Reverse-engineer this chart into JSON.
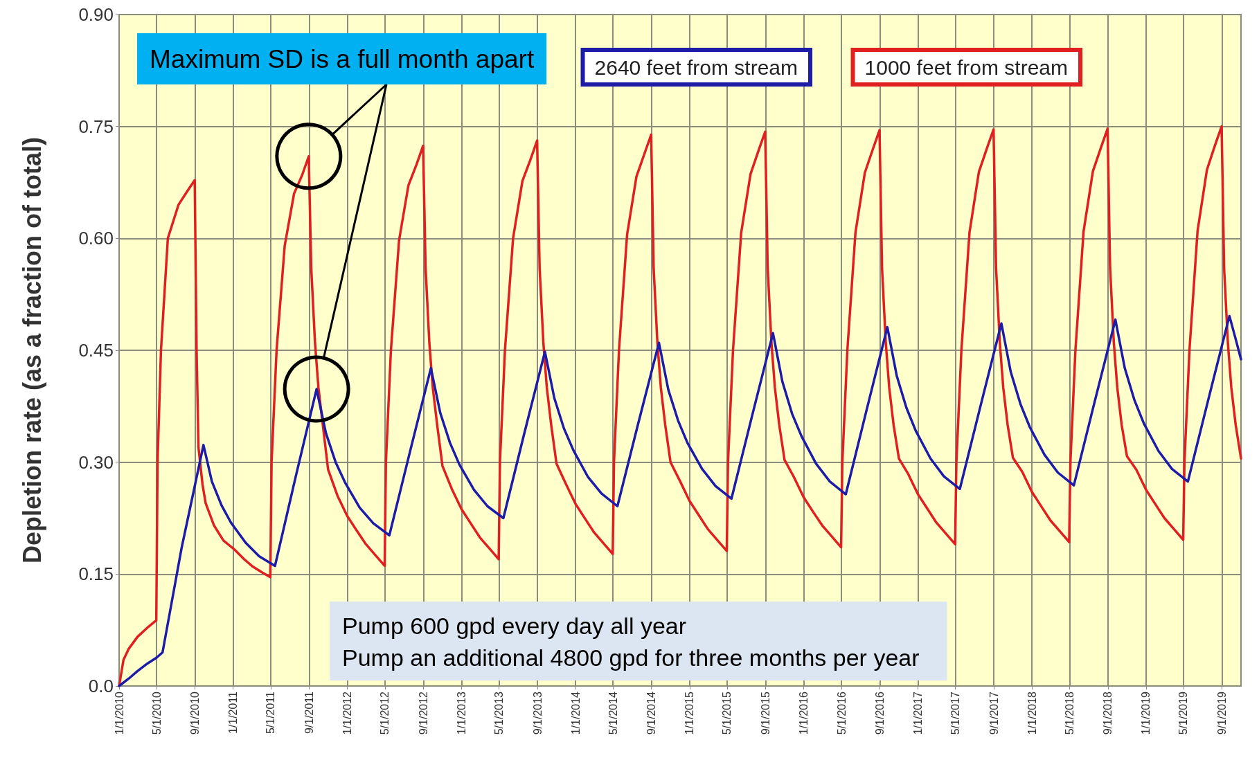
{
  "chart_data": {
    "type": "line",
    "ylabel": "Depletion rate (as a fraction of total)",
    "xlim": [
      "2010-01-01",
      "2019-11-01"
    ],
    "xticks": [
      {
        "value": "2010-01-01",
        "label": "1/1/2010"
      },
      {
        "value": "2010-05-01",
        "label": "5/1/2010"
      },
      {
        "value": "2010-09-01",
        "label": "9/1/2010"
      },
      {
        "value": "2011-01-01",
        "label": "1/1/2011"
      },
      {
        "value": "2011-05-01",
        "label": "5/1/2011"
      },
      {
        "value": "2011-09-01",
        "label": "9/1/2011"
      },
      {
        "value": "2012-01-01",
        "label": "1/1/2012"
      },
      {
        "value": "2012-05-01",
        "label": "5/1/2012"
      },
      {
        "value": "2012-09-01",
        "label": "9/1/2012"
      },
      {
        "value": "2013-01-01",
        "label": "1/1/2013"
      },
      {
        "value": "2013-05-01",
        "label": "5/1/2013"
      },
      {
        "value": "2013-09-01",
        "label": "9/1/2013"
      },
      {
        "value": "2014-01-01",
        "label": "1/1/2014"
      },
      {
        "value": "2014-05-01",
        "label": "5/1/2014"
      },
      {
        "value": "2014-09-01",
        "label": "9/1/2014"
      },
      {
        "value": "2015-01-01",
        "label": "1/1/2015"
      },
      {
        "value": "2015-05-01",
        "label": "5/1/2015"
      },
      {
        "value": "2015-09-01",
        "label": "9/1/2015"
      },
      {
        "value": "2016-01-01",
        "label": "1/1/2016"
      },
      {
        "value": "2016-05-01",
        "label": "5/1/2016"
      },
      {
        "value": "2016-09-01",
        "label": "9/1/2016"
      },
      {
        "value": "2017-01-01",
        "label": "1/1/2017"
      },
      {
        "value": "2017-05-01",
        "label": "5/1/2017"
      },
      {
        "value": "2017-09-01",
        "label": "9/1/2017"
      },
      {
        "value": "2018-01-01",
        "label": "1/1/2018"
      },
      {
        "value": "2018-05-01",
        "label": "5/1/2018"
      },
      {
        "value": "2018-09-01",
        "label": "9/1/2018"
      },
      {
        "value": "2019-01-01",
        "label": "1/1/2019"
      },
      {
        "value": "2019-05-01",
        "label": "5/1/2019"
      },
      {
        "value": "2019-09-01",
        "label": "9/1/2019"
      }
    ],
    "ylim": [
      0,
      0.9
    ],
    "yticks": [
      {
        "value": 0,
        "label": "0.0"
      },
      {
        "value": 0.15,
        "label": "0.15"
      },
      {
        "value": 0.3,
        "label": "0.30"
      },
      {
        "value": 0.45,
        "label": "0.45"
      },
      {
        "value": 0.6,
        "label": "0.60"
      },
      {
        "value": 0.75,
        "label": "0.75"
      },
      {
        "value": 0.9,
        "label": "0.90"
      }
    ],
    "grid": true,
    "legend": "top right",
    "series": [
      {
        "name": "1000 feet from stream",
        "color": "#e02020",
        "x": [
          "2010-01-01",
          "2010-01-15",
          "2010-02-01",
          "2010-03-01",
          "2010-04-01",
          "2010-04-30",
          "2010-05-04",
          "2010-05-15",
          "2010-06-06",
          "2010-07-10",
          "2010-08-10",
          "2010-08-31",
          "2010-09-06",
          "2010-09-12",
          "2010-09-25",
          "2010-10-05",
          "2010-11-01",
          "2010-12-01",
          "2011-01-05",
          "2011-02-05",
          "2011-03-05",
          "2011-04-05",
          "2011-04-30",
          "2011-05-04",
          "2011-05-20",
          "2011-06-15",
          "2011-07-15",
          "2011-08-10",
          "2011-08-31",
          "2011-09-08",
          "2011-09-20",
          "2011-10-01",
          "2011-10-15",
          "2011-11-01",
          "2011-12-01",
          "2012-01-01",
          "2012-02-01",
          "2012-03-01",
          "2012-04-01",
          "2012-04-30",
          "2012-05-04",
          "2012-05-20",
          "2012-06-15",
          "2012-07-15",
          "2012-08-10",
          "2012-08-31",
          "2012-09-08",
          "2012-09-20",
          "2012-10-01",
          "2012-10-15",
          "2012-11-01",
          "2012-12-01",
          "2013-01-01",
          "2013-02-01",
          "2013-03-01",
          "2013-04-01",
          "2013-04-30",
          "2013-05-04",
          "2013-05-20",
          "2013-06-15",
          "2013-07-15",
          "2013-08-10",
          "2013-08-31",
          "2013-09-08",
          "2013-09-20",
          "2013-10-01",
          "2013-10-15",
          "2013-11-01",
          "2013-12-01",
          "2014-01-01",
          "2014-02-01",
          "2014-03-01",
          "2014-04-01",
          "2014-04-30",
          "2014-05-04",
          "2014-05-20",
          "2014-06-15",
          "2014-07-15",
          "2014-08-10",
          "2014-08-31",
          "2014-09-08",
          "2014-09-20",
          "2014-10-01",
          "2014-10-15",
          "2014-11-01",
          "2014-12-01",
          "2015-01-01",
          "2015-02-01",
          "2015-03-01",
          "2015-04-01",
          "2015-04-30",
          "2015-05-04",
          "2015-05-20",
          "2015-06-15",
          "2015-07-15",
          "2015-08-10",
          "2015-08-31",
          "2015-09-08",
          "2015-09-20",
          "2015-10-01",
          "2015-10-15",
          "2015-11-01",
          "2015-12-01",
          "2016-01-01",
          "2016-02-01",
          "2016-03-01",
          "2016-04-01",
          "2016-04-30",
          "2016-05-04",
          "2016-05-20",
          "2016-06-15",
          "2016-07-15",
          "2016-08-10",
          "2016-08-31",
          "2016-09-08",
          "2016-09-20",
          "2016-10-01",
          "2016-10-15",
          "2016-11-01",
          "2016-12-01",
          "2017-01-01",
          "2017-02-01",
          "2017-03-01",
          "2017-04-01",
          "2017-04-30",
          "2017-05-04",
          "2017-05-20",
          "2017-06-15",
          "2017-07-15",
          "2017-08-10",
          "2017-08-31",
          "2017-09-08",
          "2017-09-20",
          "2017-10-01",
          "2017-10-15",
          "2017-11-01",
          "2017-12-01",
          "2018-01-01",
          "2018-02-01",
          "2018-03-01",
          "2018-04-01",
          "2018-04-30",
          "2018-05-04",
          "2018-05-20",
          "2018-06-15",
          "2018-07-15",
          "2018-08-10",
          "2018-08-31",
          "2018-09-08",
          "2018-09-20",
          "2018-10-01",
          "2018-10-15",
          "2018-11-01",
          "2018-12-01",
          "2019-01-01",
          "2019-02-01",
          "2019-03-01",
          "2019-04-01",
          "2019-04-30",
          "2019-05-04",
          "2019-05-20",
          "2019-06-15",
          "2019-07-15",
          "2019-08-10",
          "2019-08-31",
          "2019-09-08",
          "2019-09-20",
          "2019-10-01",
          "2019-10-15",
          "2019-11-01"
        ],
        "values": [
          0,
          0.035,
          0.05,
          0.066,
          0.078,
          0.088,
          0.3,
          0.45,
          0.6,
          0.645,
          0.665,
          0.678,
          0.45,
          0.32,
          0.27,
          0.245,
          0.215,
          0.195,
          0.183,
          0.17,
          0.16,
          0.152,
          0.146,
          0.3,
          0.45,
          0.59,
          0.66,
          0.685,
          0.71,
          0.56,
          0.46,
          0.4,
          0.35,
          0.29,
          0.255,
          0.228,
          0.208,
          0.19,
          0.175,
          0.161,
          0.3,
          0.45,
          0.597,
          0.671,
          0.699,
          0.724,
          0.56,
          0.46,
          0.4,
          0.35,
          0.295,
          0.264,
          0.237,
          0.217,
          0.199,
          0.184,
          0.17,
          0.3,
          0.45,
          0.6,
          0.677,
          0.706,
          0.731,
          0.56,
          0.46,
          0.4,
          0.35,
          0.298,
          0.271,
          0.244,
          0.224,
          0.206,
          0.191,
          0.177,
          0.3,
          0.45,
          0.605,
          0.683,
          0.714,
          0.739,
          0.56,
          0.46,
          0.4,
          0.35,
          0.3,
          0.275,
          0.248,
          0.228,
          0.21,
          0.195,
          0.181,
          0.3,
          0.45,
          0.607,
          0.686,
          0.718,
          0.743,
          0.56,
          0.46,
          0.4,
          0.35,
          0.303,
          0.28,
          0.253,
          0.233,
          0.215,
          0.2,
          0.186,
          0.3,
          0.45,
          0.608,
          0.688,
          0.72,
          0.745,
          0.56,
          0.46,
          0.4,
          0.35,
          0.305,
          0.284,
          0.257,
          0.237,
          0.219,
          0.204,
          0.19,
          0.3,
          0.45,
          0.608,
          0.689,
          0.721,
          0.746,
          0.56,
          0.46,
          0.4,
          0.35,
          0.306,
          0.287,
          0.26,
          0.24,
          0.222,
          0.207,
          0.193,
          0.3,
          0.45,
          0.609,
          0.69,
          0.722,
          0.747,
          0.56,
          0.46,
          0.4,
          0.35,
          0.308,
          0.29,
          0.263,
          0.243,
          0.225,
          0.21,
          0.196,
          0.3,
          0.45,
          0.61,
          0.692,
          0.725,
          0.75,
          0.56,
          0.46,
          0.4,
          0.35,
          0.305
        ]
      },
      {
        "name": "2640 feet from stream",
        "color": "#1c1ca8",
        "x": [
          "2010-01-01",
          "2010-02-01",
          "2010-03-01",
          "2010-04-01",
          "2010-05-01",
          "2010-05-20",
          "2010-07-20",
          "2010-09-28",
          "2010-10-25",
          "2010-11-25",
          "2010-12-25",
          "2011-02-10",
          "2011-03-25",
          "2011-05-15",
          "2011-07-20",
          "2011-09-25",
          "2011-10-25",
          "2011-11-25",
          "2011-12-25",
          "2012-02-10",
          "2012-03-25",
          "2012-05-15",
          "2012-07-20",
          "2012-09-25",
          "2012-10-25",
          "2012-11-25",
          "2012-12-25",
          "2013-02-10",
          "2013-03-25",
          "2013-05-15",
          "2013-07-20",
          "2013-09-25",
          "2013-10-25",
          "2013-11-25",
          "2013-12-25",
          "2014-02-10",
          "2014-03-25",
          "2014-05-15",
          "2014-07-20",
          "2014-09-25",
          "2014-10-25",
          "2014-11-25",
          "2014-12-25",
          "2015-02-10",
          "2015-03-25",
          "2015-05-15",
          "2015-07-20",
          "2015-09-25",
          "2015-10-25",
          "2015-11-25",
          "2015-12-25",
          "2016-02-10",
          "2016-03-25",
          "2016-05-15",
          "2016-07-20",
          "2016-09-25",
          "2016-10-25",
          "2016-11-25",
          "2016-12-25",
          "2017-02-10",
          "2017-03-25",
          "2017-05-15",
          "2017-07-20",
          "2017-09-25",
          "2017-10-25",
          "2017-11-25",
          "2017-12-25",
          "2018-02-10",
          "2018-03-25",
          "2018-05-15",
          "2018-07-20",
          "2018-09-25",
          "2018-10-25",
          "2018-11-25",
          "2018-12-25",
          "2019-02-10",
          "2019-03-25",
          "2019-05-15",
          "2019-07-20",
          "2019-09-25",
          "2019-10-15",
          "2019-11-01"
        ],
        "values": [
          0,
          0.01,
          0.02,
          0.03,
          0.038,
          0.045,
          0.185,
          0.323,
          0.274,
          0.242,
          0.219,
          0.192,
          0.174,
          0.161,
          0.28,
          0.398,
          0.339,
          0.3,
          0.273,
          0.239,
          0.218,
          0.202,
          0.314,
          0.426,
          0.366,
          0.326,
          0.297,
          0.263,
          0.241,
          0.225,
          0.337,
          0.448,
          0.386,
          0.345,
          0.316,
          0.28,
          0.258,
          0.241,
          0.351,
          0.46,
          0.397,
          0.356,
          0.326,
          0.291,
          0.268,
          0.251,
          0.362,
          0.473,
          0.408,
          0.365,
          0.335,
          0.298,
          0.274,
          0.257,
          0.369,
          0.481,
          0.416,
          0.373,
          0.342,
          0.305,
          0.281,
          0.264,
          0.375,
          0.486,
          0.421,
          0.378,
          0.347,
          0.31,
          0.286,
          0.269,
          0.38,
          0.491,
          0.426,
          0.383,
          0.352,
          0.315,
          0.291,
          0.274,
          0.385,
          0.496,
          0.465,
          0.438
        ]
      }
    ],
    "annotations": [
      "Maximum SD is a full month apart",
      "Pump 600 gpd every day all year\nPump an additional 4800 gpd for three months per year"
    ]
  }
}
